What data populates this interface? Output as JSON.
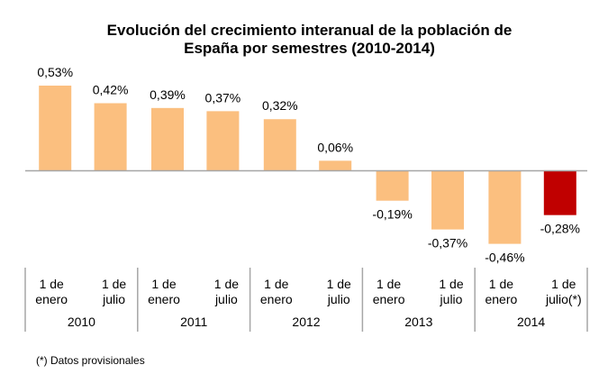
{
  "chart_data": {
    "type": "bar",
    "title_lines": [
      "Evolución del crecimiento interanual de la población de",
      "España por semestres (2010-2014)"
    ],
    "categories": [
      {
        "line1": "1 de",
        "line2": "enero"
      },
      {
        "line1": "1 de",
        "line2": "julio"
      },
      {
        "line1": "1 de",
        "line2": "enero"
      },
      {
        "line1": "1 de",
        "line2": "julio"
      },
      {
        "line1": "1 de",
        "line2": "enero"
      },
      {
        "line1": "1 de",
        "line2": "julio"
      },
      {
        "line1": "1 de",
        "line2": "enero"
      },
      {
        "line1": "1 de",
        "line2": "julio"
      },
      {
        "line1": "1 de",
        "line2": "enero"
      },
      {
        "line1": "1 de",
        "line2": "julio(*)"
      }
    ],
    "groups": [
      "2010",
      "2011",
      "2012",
      "2013",
      "2014"
    ],
    "values": [
      0.53,
      0.42,
      0.39,
      0.37,
      0.32,
      0.06,
      -0.19,
      -0.37,
      -0.46,
      -0.28
    ],
    "data_labels": [
      "0,53%",
      "0,42%",
      "0,39%",
      "0,37%",
      "0,32%",
      "0,06%",
      "-0,19%",
      "-0,37%",
      "-0,46%",
      "-0,28%"
    ],
    "highlight_index": 9,
    "colors": {
      "bar": "#fbbf7f",
      "highlight": "#c00000",
      "axis": "#a6a6a6"
    },
    "xlabel": "",
    "ylabel": "",
    "unit": "%",
    "grid": false,
    "legend": "none"
  },
  "footnote": "(*) Datos provisionales"
}
